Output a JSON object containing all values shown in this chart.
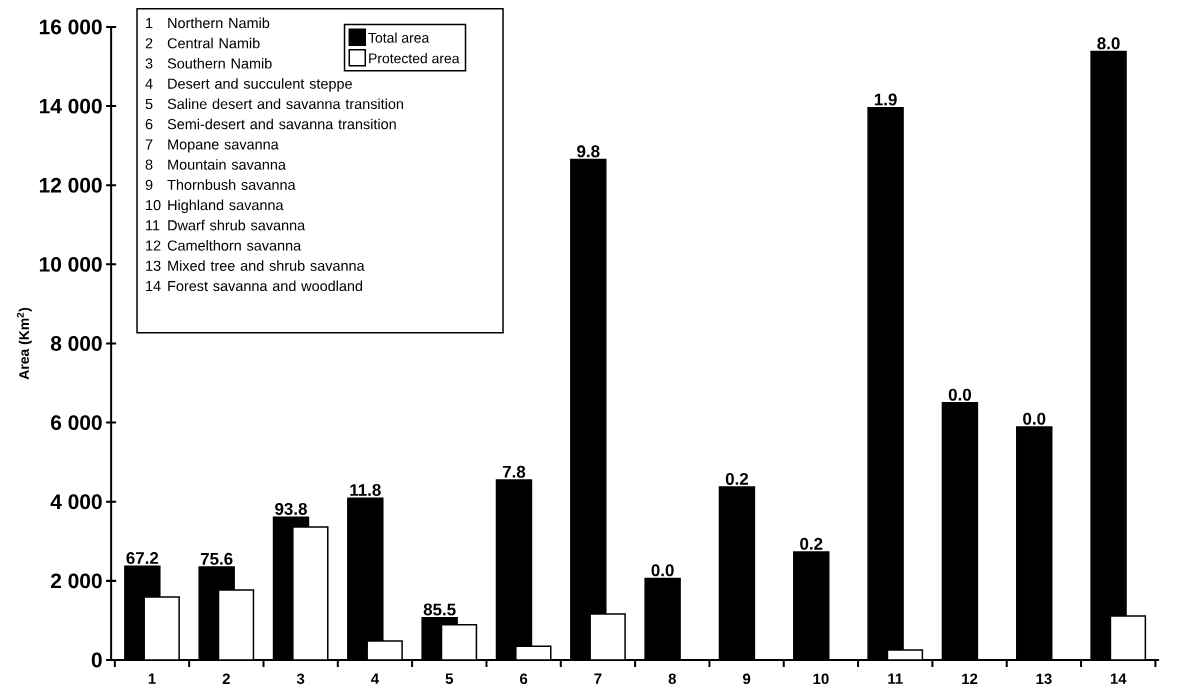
{
  "chart_data": {
    "type": "bar",
    "ylabel": "Area (Km$^{2}$)",
    "categories": [
      "1",
      "2",
      "3",
      "4",
      "5",
      "6",
      "7",
      "8",
      "9",
      "10",
      "11",
      "12",
      "13",
      "14"
    ],
    "series": [
      {
        "name": "Total area",
        "color": "#000000",
        "values": [
          2370,
          2350,
          3610,
          4090,
          1070,
          4550,
          12650,
          2060,
          4370,
          2730,
          13960,
          6500,
          5890,
          15380
        ]
      },
      {
        "name": "Protected area",
        "color": "#ffffff",
        "values": [
          1590,
          1770,
          3360,
          480,
          890,
          350,
          1160,
          0,
          0,
          0,
          250,
          0,
          0,
          1110
        ]
      }
    ],
    "ylim": [
      0,
      16000
    ],
    "yticks": [
      {
        "value": 0,
        "label": "0"
      },
      {
        "value": 2000,
        "label": "2 000"
      },
      {
        "value": 4000,
        "label": "4 000"
      },
      {
        "value": 6000,
        "label": "6 000"
      },
      {
        "value": 8000,
        "label": "8 000"
      },
      {
        "value": 10000,
        "label": "10 000"
      },
      {
        "value": 12000,
        "label": "12 000"
      },
      {
        "value": 14000,
        "label": "14 000"
      },
      {
        "value": 16000,
        "label": "16 000"
      }
    ],
    "grid": false,
    "legend": "top left",
    "annotations": [
      {
        "text": "67.2",
        "x": "1",
        "y": 2370
      },
      {
        "text": "75.6",
        "x": "2",
        "y": 2350
      },
      {
        "text": "93.8",
        "x": "3",
        "y": 3610
      },
      {
        "text": "11.8",
        "x": "4",
        "y": 4090
      },
      {
        "text": "85.5",
        "x": "5",
        "y": 1070
      },
      {
        "text": "7.8",
        "x": "6",
        "y": 4550
      },
      {
        "text": "9.8",
        "x": "7",
        "y": 12650
      },
      {
        "text": "0.0",
        "x": "8",
        "y": 2060
      },
      {
        "text": "0.2",
        "x": "9",
        "y": 4370
      },
      {
        "text": "0.2",
        "x": "10",
        "y": 2730
      },
      {
        "text": "1.9",
        "x": "11",
        "y": 13960
      },
      {
        "text": "0.0",
        "x": "12",
        "y": 6500
      },
      {
        "text": "0.0",
        "x": "13",
        "y": 5890
      },
      {
        "text": "8.0",
        "x": "14",
        "y": 15380
      },
      "1",
      "Northern Namib",
      "2",
      "Central Namib",
      "3",
      "Southern Namib",
      "4",
      "Desert and succulent steppe",
      "5",
      "Saline desert and savanna transition",
      "6",
      "Semi-desert and savanna transition",
      "7",
      "Mopane savanna",
      "8",
      "Mountain savanna",
      "9",
      "Thornbush savanna",
      "10",
      "Highland savanna",
      "11",
      "Dwarf shrub savanna",
      "12",
      "Camelthorn savanna",
      "13",
      "Mixed tree and shrub savanna",
      "14",
      "Forest savanna and woodland"
    ]
  }
}
